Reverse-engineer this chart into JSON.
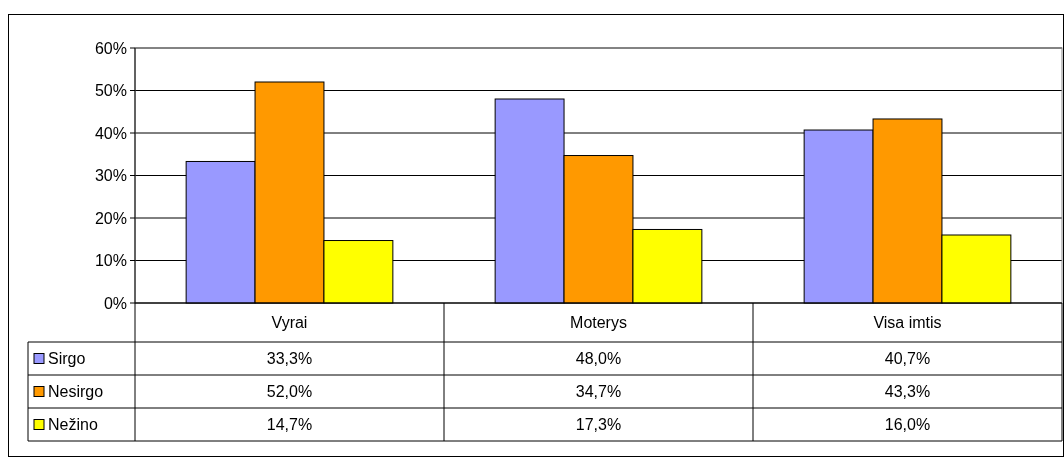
{
  "chart_data": {
    "type": "bar",
    "categories": [
      "Vyrai",
      "Moterys",
      "Visa imtis"
    ],
    "series": [
      {
        "name": "Sirgo",
        "color": "#9999ff",
        "values": [
          33.3,
          48.0,
          40.7
        ],
        "value_labels": [
          "33,3%",
          "48,0%",
          "40,7%"
        ]
      },
      {
        "name": "Nesirgo",
        "color": "#ff9900",
        "values": [
          52.0,
          34.7,
          43.3
        ],
        "value_labels": [
          "52,0%",
          "34,7%",
          "43,3%"
        ]
      },
      {
        "name": "Nežino",
        "color": "#ffff00",
        "values": [
          14.7,
          17.3,
          16.0
        ],
        "value_labels": [
          "14,7%",
          "17,3%",
          "16,0%"
        ]
      }
    ],
    "ylim": [
      0,
      60
    ],
    "yticks": [
      {
        "value": 0,
        "label": "0%"
      },
      {
        "value": 10,
        "label": "10%"
      },
      {
        "value": 20,
        "label": "20%"
      },
      {
        "value": 30,
        "label": "30%"
      },
      {
        "value": 40,
        "label": "40%"
      },
      {
        "value": 50,
        "label": "50%"
      },
      {
        "value": 60,
        "label": "60%"
      }
    ],
    "grid": "y",
    "legend": "bottom"
  }
}
